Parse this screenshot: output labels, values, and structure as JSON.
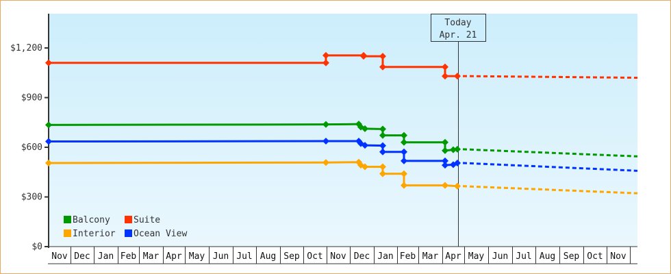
{
  "chart_data": {
    "type": "line",
    "title": "",
    "xlabel": "",
    "ylabel": "",
    "ylim": [
      0,
      1400
    ],
    "grid": false,
    "legend_position": "lower-left inside",
    "y_ticks": [
      {
        "value": 0,
        "label": "$0"
      },
      {
        "value": 300,
        "label": "$300"
      },
      {
        "value": 600,
        "label": "$600"
      },
      {
        "value": 900,
        "label": "$900"
      },
      {
        "value": 1200,
        "label": "$1,200"
      }
    ],
    "x_months": [
      "Nov",
      "Dec",
      "Jan",
      "Feb",
      "Mar",
      "Apr",
      "May",
      "Jun",
      "Jul",
      "Aug",
      "Sep",
      "Oct",
      "Nov",
      "Dec",
      "Jan",
      "Feb",
      "Mar",
      "Apr",
      "May",
      "Jun",
      "Jul",
      "Aug",
      "Sep",
      "Oct",
      "Nov"
    ],
    "today_marker": {
      "line1": "Today",
      "line2": "Apr. 21"
    },
    "legend": [
      {
        "name": "Balcony",
        "color": "#009900"
      },
      {
        "name": "Suite",
        "color": "#ff3300"
      },
      {
        "name": "Interior",
        "color": "#ffa500"
      },
      {
        "name": "Ocean View",
        "color": "#0033ff"
      }
    ],
    "series": [
      {
        "name": "Suite",
        "color": "#ff3300",
        "history_step_points": [
          {
            "date": "Nov start",
            "value": 1110
          },
          {
            "date": "late Oct",
            "value": 1110
          },
          {
            "date": "late Oct",
            "value": 1155
          },
          {
            "date": "Dec",
            "value": 1155
          },
          {
            "date": "Dec",
            "value": 1150
          },
          {
            "date": "early Jan",
            "value": 1150
          },
          {
            "date": "early Jan",
            "value": 1085
          },
          {
            "date": "early Apr",
            "value": 1085
          },
          {
            "date": "early Apr",
            "value": 1030
          },
          {
            "date": "Apr 21",
            "value": 1030
          }
        ],
        "forecast": [
          {
            "date": "Apr 21",
            "value": 1030
          },
          {
            "date": "Nov end",
            "value": 1020
          }
        ]
      },
      {
        "name": "Balcony",
        "color": "#009900",
        "history_step_points": [
          {
            "date": "Nov start",
            "value": 735
          },
          {
            "date": "late Oct",
            "value": 738
          },
          {
            "date": "Dec",
            "value": 740
          },
          {
            "date": "Dec",
            "value": 722
          },
          {
            "date": "Dec",
            "value": 712
          },
          {
            "date": "early Jan",
            "value": 710
          },
          {
            "date": "early Jan",
            "value": 672
          },
          {
            "date": "early Feb",
            "value": 672
          },
          {
            "date": "early Feb",
            "value": 630
          },
          {
            "date": "early Apr",
            "value": 630
          },
          {
            "date": "early Apr",
            "value": 580
          },
          {
            "date": "Apr",
            "value": 585
          },
          {
            "date": "Apr 21",
            "value": 588
          }
        ],
        "forecast": [
          {
            "date": "Apr 21",
            "value": 588
          },
          {
            "date": "Nov end",
            "value": 545
          }
        ]
      },
      {
        "name": "Ocean View",
        "color": "#0033ff",
        "history_step_points": [
          {
            "date": "Nov start",
            "value": 635
          },
          {
            "date": "late Oct",
            "value": 637
          },
          {
            "date": "Dec",
            "value": 637
          },
          {
            "date": "Dec",
            "value": 622
          },
          {
            "date": "Dec",
            "value": 612
          },
          {
            "date": "early Jan",
            "value": 610
          },
          {
            "date": "early Jan",
            "value": 572
          },
          {
            "date": "early Feb",
            "value": 572
          },
          {
            "date": "early Feb",
            "value": 518
          },
          {
            "date": "early Apr",
            "value": 518
          },
          {
            "date": "early Apr",
            "value": 492
          },
          {
            "date": "Apr",
            "value": 495
          },
          {
            "date": "Apr 21",
            "value": 505
          }
        ],
        "forecast": [
          {
            "date": "Apr 21",
            "value": 505
          },
          {
            "date": "Nov end",
            "value": 458
          }
        ]
      },
      {
        "name": "Interior",
        "color": "#ffa500",
        "history_step_points": [
          {
            "date": "Nov start",
            "value": 505
          },
          {
            "date": "late Oct",
            "value": 508
          },
          {
            "date": "Dec",
            "value": 510
          },
          {
            "date": "Dec",
            "value": 492
          },
          {
            "date": "Dec",
            "value": 482
          },
          {
            "date": "early Jan",
            "value": 482
          },
          {
            "date": "early Jan",
            "value": 440
          },
          {
            "date": "early Feb",
            "value": 440
          },
          {
            "date": "early Feb",
            "value": 370
          },
          {
            "date": "early Apr",
            "value": 370
          },
          {
            "date": "Apr 21",
            "value": 365
          }
        ],
        "forecast": [
          {
            "date": "Apr 21",
            "value": 365
          },
          {
            "date": "Nov end",
            "value": 322
          }
        ]
      }
    ]
  }
}
